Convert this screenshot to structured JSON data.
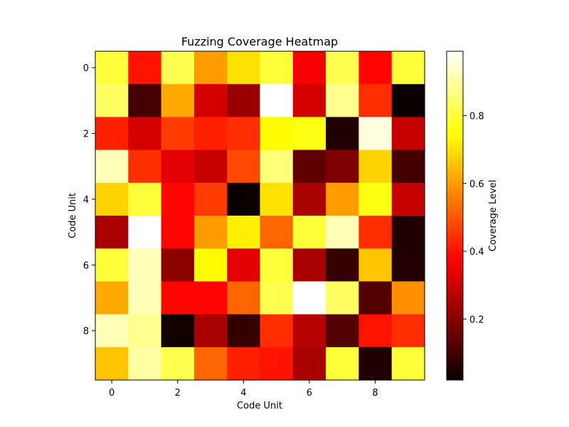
{
  "chart_data": {
    "type": "heatmap",
    "title": "Fuzzing Coverage Heatmap",
    "xlabel": "Code Unit",
    "ylabel": "Code Unit",
    "x_ticks": [
      0,
      2,
      4,
      6,
      8
    ],
    "y_ticks": [
      0,
      2,
      4,
      6,
      8
    ],
    "colormap": "hot",
    "colorbar": {
      "label": "Coverage Level",
      "range": [
        0.02,
        0.99
      ],
      "ticks": [
        0.2,
        0.4,
        0.6,
        0.8
      ]
    },
    "grid": false,
    "values": [
      [
        0.8,
        0.4,
        0.82,
        0.6,
        0.7,
        0.8,
        0.35,
        0.82,
        0.38,
        0.8
      ],
      [
        0.84,
        0.1,
        0.62,
        0.3,
        0.22,
        0.99,
        0.3,
        0.88,
        0.44,
        0.02
      ],
      [
        0.42,
        0.3,
        0.46,
        0.42,
        0.44,
        0.74,
        0.76,
        0.05,
        0.96,
        0.28
      ],
      [
        0.92,
        0.44,
        0.32,
        0.28,
        0.48,
        0.86,
        0.14,
        0.18,
        0.68,
        0.1
      ],
      [
        0.68,
        0.8,
        0.38,
        0.46,
        0.02,
        0.7,
        0.24,
        0.6,
        0.76,
        0.28
      ],
      [
        0.24,
        0.99,
        0.38,
        0.6,
        0.72,
        0.52,
        0.8,
        0.92,
        0.44,
        0.05
      ],
      [
        0.8,
        0.92,
        0.2,
        0.74,
        0.32,
        0.8,
        0.24,
        0.08,
        0.66,
        0.05
      ],
      [
        0.62,
        0.92,
        0.38,
        0.38,
        0.52,
        0.82,
        0.99,
        0.84,
        0.12,
        0.58
      ],
      [
        0.92,
        0.88,
        0.03,
        0.24,
        0.08,
        0.44,
        0.26,
        0.12,
        0.4,
        0.44
      ],
      [
        0.66,
        0.9,
        0.82,
        0.52,
        0.42,
        0.4,
        0.24,
        0.8,
        0.05,
        0.8
      ]
    ]
  }
}
